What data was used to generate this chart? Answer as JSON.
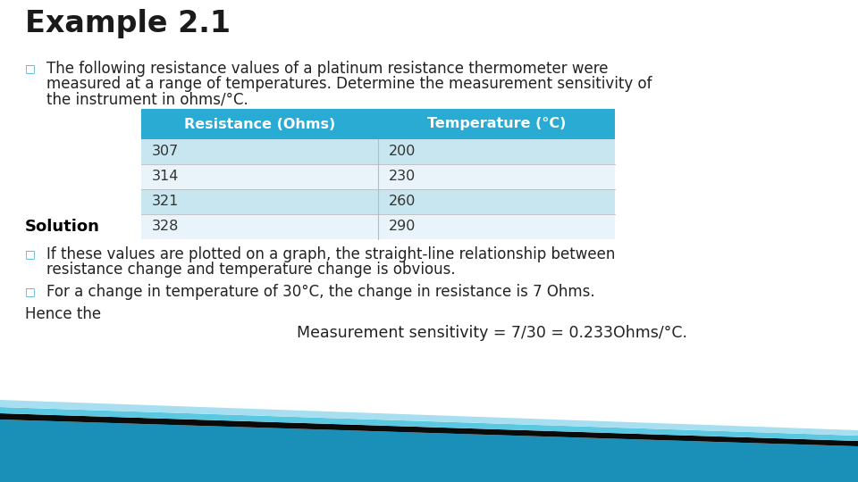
{
  "title": "Example 2.1",
  "bullet1_line1": "The following resistance values of a platinum resistance thermometer were",
  "bullet1_line2": "measured at a range of temperatures. Determine the measurement sensitivity of",
  "bullet1_line3": "the instrument in ohms/°C.",
  "table_header": [
    "Resistance (Ohms)",
    "Temperature (°C)"
  ],
  "table_data": [
    [
      "307",
      "200"
    ],
    [
      "314",
      "230"
    ],
    [
      "321",
      "260"
    ],
    [
      "328",
      "290"
    ]
  ],
  "solution_label": "Solution",
  "bullet2_line1": "If these values are plotted on a graph, the straight-line relationship between",
  "bullet2_line2": "resistance change and temperature change is obvious.",
  "bullet3": "For a change in temperature of 30°C, the change in resistance is 7 Ohms.",
  "hence": "Hence the",
  "formula": "Measurement sensitivity = 7/30 = 0.233Ohms/°C.",
  "header_bg": "#29ABD4",
  "header_text": "#FFFFFF",
  "row_bg_odd": "#C8E6F0",
  "row_bg_even": "#E8F4FA",
  "table_text": "#333333",
  "title_color": "#1a1a1a",
  "body_color": "#222222",
  "solution_color": "#000000",
  "bg_color": "#FFFFFF",
  "bullet_char": "□",
  "deco_dark": "#135F85",
  "deco_teal": "#1A90B8",
  "deco_light": "#5AC8E0",
  "deco_vlight": "#A8DFF0",
  "deco_black": "#0A0A0A"
}
